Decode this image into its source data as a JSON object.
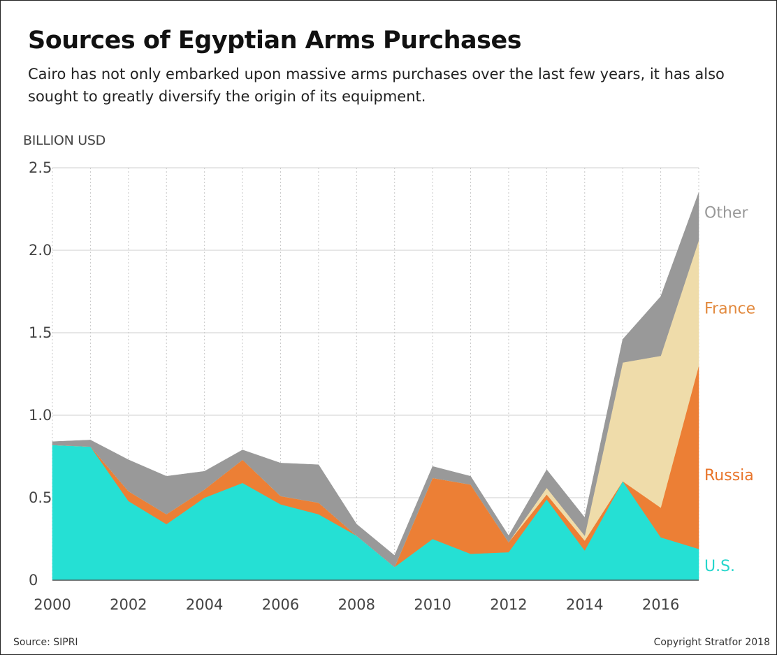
{
  "chart_data": {
    "type": "area",
    "stacked": true,
    "title": "Sources of Egyptian Arms Purchases",
    "subtitle": "Cairo has not only embarked upon massive arms purchases over the last few years, it has also sought to greatly diversify the origin of its equipment.",
    "ylabel": "BILLION USD",
    "xlabel": "",
    "x": [
      2000,
      2001,
      2002,
      2003,
      2004,
      2005,
      2006,
      2007,
      2008,
      2009,
      2010,
      2011,
      2012,
      2013,
      2014,
      2015,
      2016,
      2017
    ],
    "xticks": [
      "2000",
      "2002",
      "2004",
      "2006",
      "2008",
      "2010",
      "2012",
      "2014",
      "2016"
    ],
    "xtick_values": [
      2000,
      2002,
      2004,
      2006,
      2008,
      2010,
      2012,
      2014,
      2016
    ],
    "yticks": [
      "0",
      "0.5",
      "1.0",
      "1.5",
      "2.0",
      "2.5"
    ],
    "ytick_values": [
      0,
      0.5,
      1.0,
      1.5,
      2.0,
      2.5
    ],
    "ylim": [
      0,
      2.5
    ],
    "xlim": [
      2000,
      2017
    ],
    "grid": {
      "horizontal": "solid",
      "vertical": "dotted"
    },
    "series": [
      {
        "name": "U.S.",
        "color": "#25e0d4",
        "values": [
          0.82,
          0.81,
          0.48,
          0.34,
          0.5,
          0.59,
          0.46,
          0.4,
          0.27,
          0.08,
          0.25,
          0.16,
          0.17,
          0.49,
          0.18,
          0.6,
          0.26,
          0.19
        ]
      },
      {
        "name": "Russia",
        "color": "#ec7f35",
        "values": [
          0.0,
          0.0,
          0.06,
          0.06,
          0.05,
          0.14,
          0.05,
          0.07,
          0.0,
          0.0,
          0.37,
          0.42,
          0.06,
          0.03,
          0.06,
          0.0,
          0.18,
          1.11
        ]
      },
      {
        "name": "France",
        "color": "#efdcaa",
        "values": [
          0.0,
          0.0,
          0.0,
          0.0,
          0.0,
          0.0,
          0.0,
          0.0,
          0.0,
          0.0,
          0.0,
          0.0,
          0.0,
          0.04,
          0.03,
          0.72,
          0.92,
          0.76
        ]
      },
      {
        "name": "Other",
        "color": "#999999",
        "values": [
          0.02,
          0.04,
          0.19,
          0.23,
          0.11,
          0.06,
          0.2,
          0.23,
          0.07,
          0.07,
          0.07,
          0.05,
          0.04,
          0.11,
          0.11,
          0.14,
          0.36,
          0.29
        ]
      }
    ],
    "series_label_colors": {
      "U.S.": "#25d6cc",
      "Russia": "#e8742a",
      "France": "#e28a3f",
      "Other": "#999999"
    },
    "series_label_values": {
      "U.S.": 0.09,
      "Russia": 0.64,
      "France": 1.65,
      "Other": 2.23
    },
    "source": "Source: SIPRI",
    "copyright": "Copyright Stratfor 2018"
  }
}
